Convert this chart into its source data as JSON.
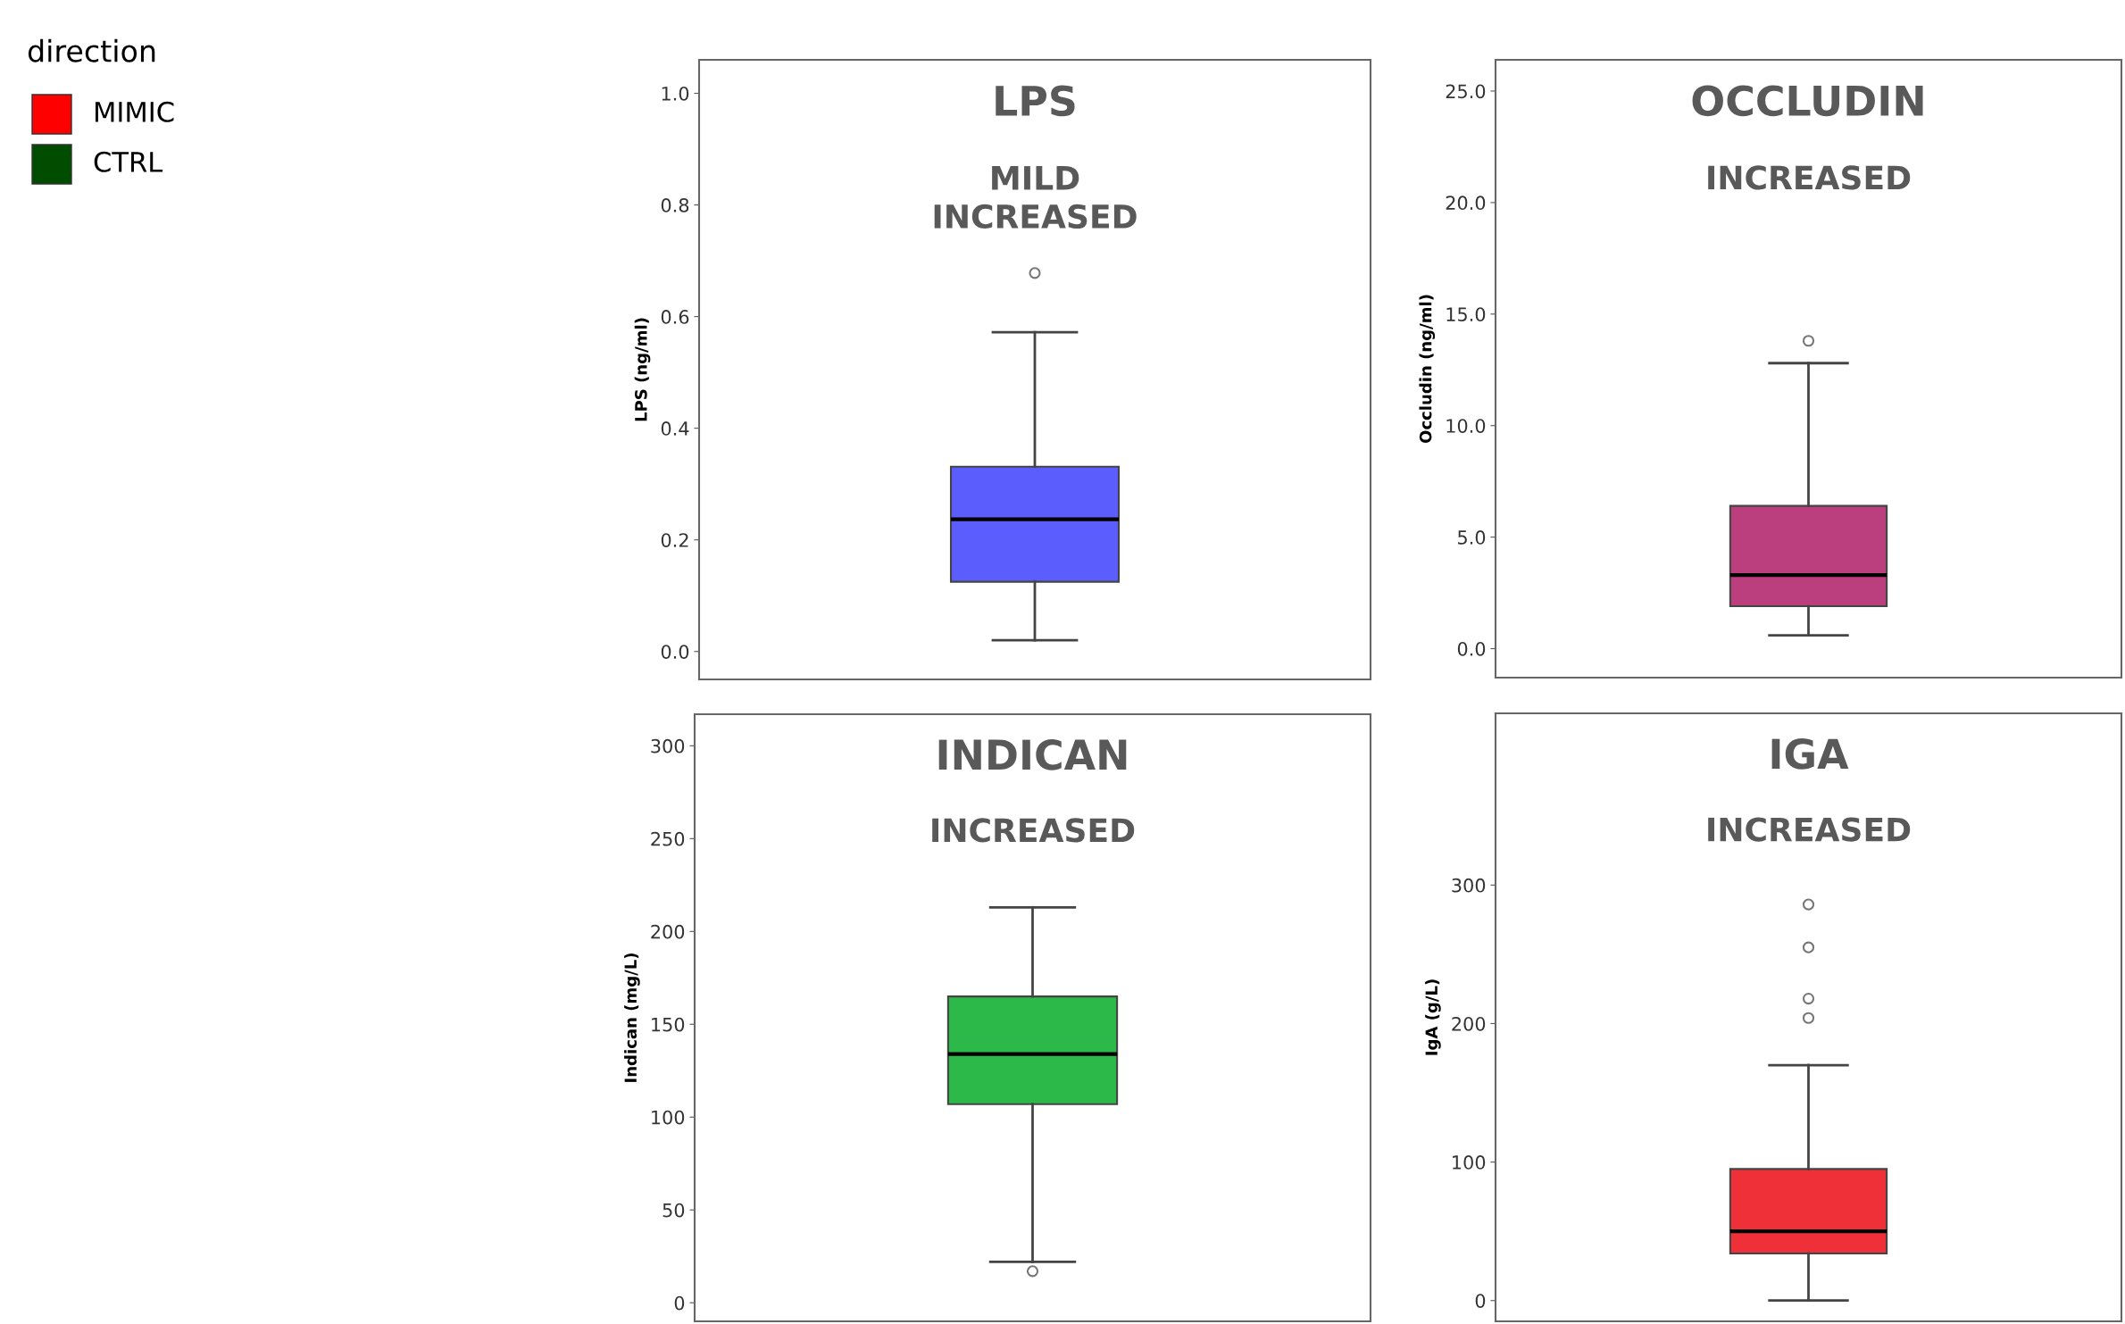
{
  "chart_data": [
    {
      "type": "other",
      "legend_title": "direction",
      "categories": [
        "MIMIC",
        "CTRL"
      ],
      "colors": [
        "#ff0000",
        "#004d00"
      ]
    },
    {
      "type": "box",
      "title": "LPS",
      "subtitle": "MILD\nINCREASED",
      "ylabel": "LPS (ng/ml)",
      "categories": [
        null
      ],
      "tick_labels": "y",
      "series": [
        {
          "color": "#5b5efc",
          "boxes": [
            {
              "low": 0.02,
              "q1": 0.125,
              "median": 0.237,
              "q3": 0.331,
              "high": 0.572,
              "outliers": [
                0.678
              ]
            }
          ]
        }
      ],
      "ylim": [
        -0.05,
        1.06
      ],
      "yticks": [
        {
          "value": 0,
          "label": "0.0"
        },
        0.2,
        0.4,
        0.6,
        0.8,
        {
          "value": 1,
          "label": "1.0"
        }
      ]
    },
    {
      "type": "box",
      "title": "OCCLUDIN",
      "subtitle": "INCREASED",
      "ylabel": "Occludin (ng/ml)",
      "categories": [
        null
      ],
      "tick_labels": "y",
      "series": [
        {
          "color": "#bb3e7e",
          "boxes": [
            {
              "low": 0.6,
              "q1": 1.9,
              "median": 3.3,
              "q3": 6.4,
              "high": 12.8,
              "outliers": [
                13.8
              ]
            }
          ]
        }
      ],
      "ylim": [
        -1.3,
        26.4
      ],
      "yticks": [
        {
          "value": 0,
          "label": "0.0"
        },
        {
          "value": 5,
          "label": "5.0"
        },
        {
          "value": 10,
          "label": "10.0"
        },
        {
          "value": 15,
          "label": "15.0"
        },
        {
          "value": 20,
          "label": "20.0"
        },
        {
          "value": 25,
          "label": "25.0"
        }
      ]
    },
    {
      "type": "box",
      "title": "INDICAN",
      "subtitle": "INCREASED",
      "ylabel": "Indican (mg/L)",
      "categories": [
        null
      ],
      "tick_labels": "y",
      "series": [
        {
          "color": "#2db84a",
          "boxes": [
            {
              "low": 22,
              "q1": 107,
              "median": 134,
              "q3": 165,
              "high": 213,
              "outliers": [
                17
              ]
            }
          ]
        }
      ],
      "ylim": [
        -10,
        317
      ],
      "yticks": [
        0,
        50,
        100,
        150,
        200,
        250,
        300
      ]
    },
    {
      "type": "box",
      "title": "IGA",
      "subtitle": "INCREASED",
      "ylabel": "IgA (g/L)",
      "categories": [
        null
      ],
      "tick_labels": "y",
      "series": [
        {
          "color": "#ef3038",
          "boxes": [
            {
              "low": 0,
              "q1": 34,
              "median": 50,
              "q3": 95,
              "high": 170,
              "outliers": [
                204,
                218,
                255,
                286
              ]
            }
          ]
        }
      ],
      "ylim": [
        -15,
        424
      ],
      "yticks": [
        0,
        100,
        200,
        300
      ]
    }
  ]
}
